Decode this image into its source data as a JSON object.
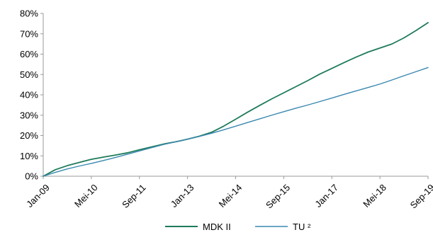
{
  "chart_data": {
    "type": "line",
    "title": "",
    "xlabel": "",
    "ylabel": "",
    "y_unit": "%",
    "ylim": [
      0,
      80
    ],
    "yticks": [
      "0%",
      "10%",
      "20%",
      "30%",
      "40%",
      "50%",
      "60%",
      "70%",
      "80%"
    ],
    "x_tick_labels": [
      "Jan-09",
      "Mei-10",
      "Sep-11",
      "Jan-13",
      "Mei-14",
      "Sep-15",
      "Jan-17",
      "Mei-18",
      "Sep-19"
    ],
    "x_start": "2009-01",
    "x_end": "2019-09",
    "grid": false,
    "legend_position": "bottom",
    "series": [
      {
        "name": "MDK II",
        "color": "#1e7b5a",
        "points": [
          [
            "2009-01",
            0
          ],
          [
            "2009-05",
            3.2
          ],
          [
            "2009-09",
            5.2
          ],
          [
            "2010-01",
            6.8
          ],
          [
            "2010-05",
            8.3
          ],
          [
            "2010-09",
            9.4
          ],
          [
            "2011-01",
            10.4
          ],
          [
            "2011-05",
            11.5
          ],
          [
            "2011-09",
            13.0
          ],
          [
            "2012-01",
            14.4
          ],
          [
            "2012-05",
            15.8
          ],
          [
            "2012-09",
            16.9
          ],
          [
            "2013-01",
            18.2
          ],
          [
            "2013-05",
            19.7
          ],
          [
            "2013-09",
            21.6
          ],
          [
            "2014-01",
            24.6
          ],
          [
            "2014-05",
            28.0
          ],
          [
            "2014-09",
            31.5
          ],
          [
            "2015-01",
            34.8
          ],
          [
            "2015-05",
            38.0
          ],
          [
            "2015-09",
            41.0
          ],
          [
            "2016-01",
            44.0
          ],
          [
            "2016-05",
            47.0
          ],
          [
            "2016-09",
            50.2
          ],
          [
            "2017-01",
            53.0
          ],
          [
            "2017-05",
            55.8
          ],
          [
            "2017-09",
            58.5
          ],
          [
            "2018-01",
            61.0
          ],
          [
            "2018-05",
            63.0
          ],
          [
            "2018-09",
            65.0
          ],
          [
            "2019-01",
            68.0
          ],
          [
            "2019-05",
            71.6
          ],
          [
            "2019-09",
            75.5
          ]
        ]
      },
      {
        "name": "TU ²",
        "color": "#3a88b0",
        "points": [
          [
            "2009-01",
            0
          ],
          [
            "2009-05",
            1.9
          ],
          [
            "2009-09",
            3.6
          ],
          [
            "2010-01",
            5.0
          ],
          [
            "2010-05",
            6.3
          ],
          [
            "2010-09",
            7.7
          ],
          [
            "2011-01",
            9.2
          ],
          [
            "2011-05",
            10.8
          ],
          [
            "2011-09",
            12.4
          ],
          [
            "2012-01",
            14.0
          ],
          [
            "2012-05",
            15.6
          ],
          [
            "2012-09",
            16.9
          ],
          [
            "2013-01",
            18.2
          ],
          [
            "2013-05",
            19.6
          ],
          [
            "2013-09",
            21.1
          ],
          [
            "2014-01",
            22.8
          ],
          [
            "2014-05",
            24.6
          ],
          [
            "2014-09",
            26.4
          ],
          [
            "2015-01",
            28.2
          ],
          [
            "2015-05",
            30.0
          ],
          [
            "2015-09",
            31.7
          ],
          [
            "2016-01",
            33.4
          ],
          [
            "2016-05",
            35.0
          ],
          [
            "2016-09",
            36.7
          ],
          [
            "2017-01",
            38.4
          ],
          [
            "2017-05",
            40.2
          ],
          [
            "2017-09",
            41.9
          ],
          [
            "2018-01",
            43.6
          ],
          [
            "2018-05",
            45.3
          ],
          [
            "2018-09",
            47.3
          ],
          [
            "2019-01",
            49.4
          ],
          [
            "2019-05",
            51.4
          ],
          [
            "2019-09",
            53.4
          ]
        ]
      }
    ]
  }
}
